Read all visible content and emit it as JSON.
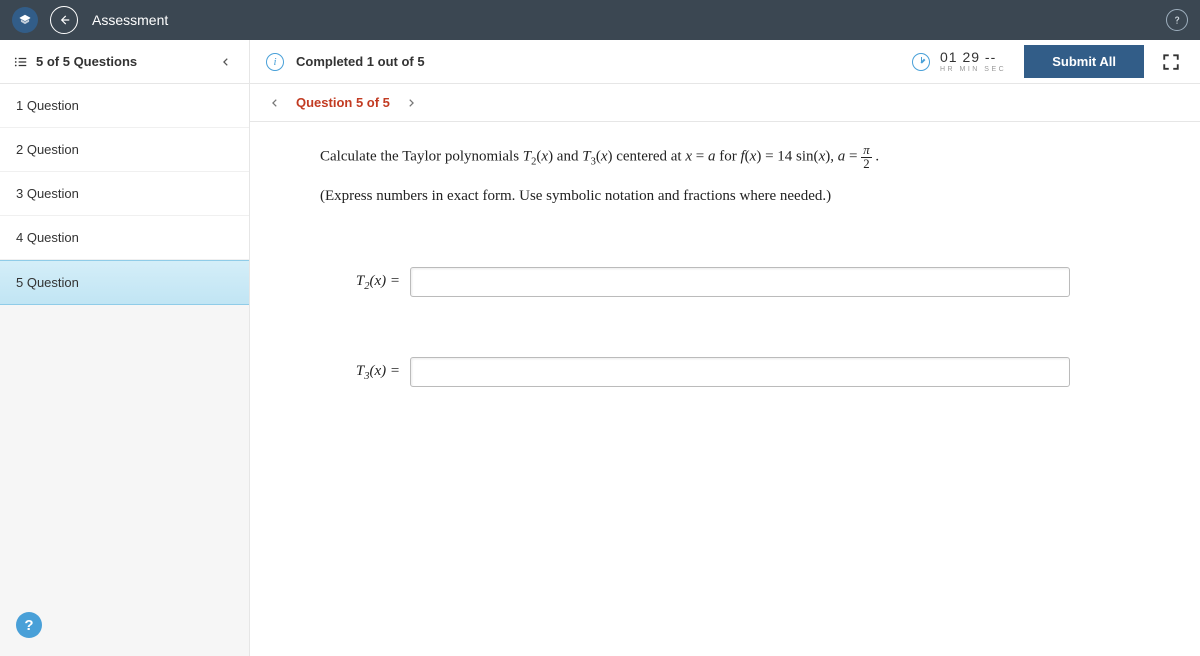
{
  "header": {
    "title": "Assessment"
  },
  "progress": {
    "questions_label": "5 of 5 Questions",
    "completed_label": "Completed 1 out of 5"
  },
  "timer": {
    "hr": "01",
    "min": "29",
    "sec": "--",
    "labels": "HR   MIN   SEC"
  },
  "actions": {
    "submit_label": "Submit All"
  },
  "sidebar": {
    "items": [
      {
        "label": "1 Question",
        "active": false
      },
      {
        "label": "2 Question",
        "active": false
      },
      {
        "label": "3 Question",
        "active": false
      },
      {
        "label": "4 Question",
        "active": false
      },
      {
        "label": "5 Question",
        "active": true
      }
    ]
  },
  "qnav": {
    "label": "Question 5 of 5"
  },
  "question": {
    "prompt_html": "Calculate the Taylor polynomials <i>T</i><sub>2</sub>(<i>x</i>) and <i>T</i><sub>3</sub>(<i>x</i>) centered at <i>x</i> = <i>a</i> for <i>f</i>(<i>x</i>) = 14 sin(<i>x</i>), <i>a</i> = <span class=\"frac\"><span class=\"num\"><i>π</i></span><span class=\"den\">2</span></span> .",
    "instruction": "(Express numbers in exact form. Use symbolic notation and fractions where needed.)",
    "answers": [
      {
        "lhs_html": "<i>T</i><sub>2</sub>(<i>x</i>) =",
        "value": ""
      },
      {
        "lhs_html": "<i>T</i><sub>3</sub>(<i>x</i>) =",
        "value": ""
      }
    ]
  },
  "colors": {
    "topbar_bg": "#3b4752",
    "brand_blue": "#325d88",
    "accent_blue": "#49a0d8",
    "active_item_bg_top": "#d4eef8",
    "active_item_bg_bottom": "#c1e5f4",
    "qlabel_color": "#c23b22",
    "border": "#e6e6e6"
  }
}
